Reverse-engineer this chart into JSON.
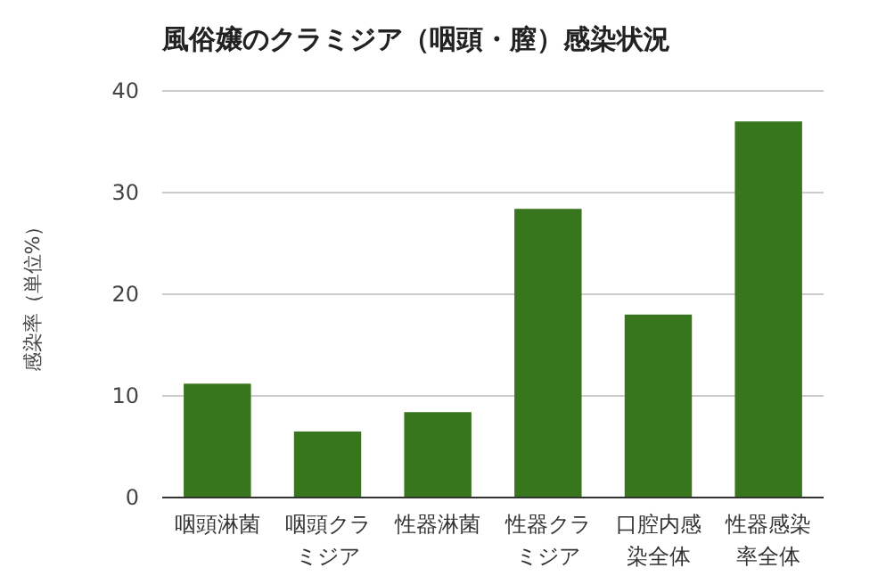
{
  "chart_data": {
    "type": "bar",
    "title": "風俗嬢のクラミジア（咽頭・膣）感染状況",
    "ylabel": "感染率（単位%）",
    "categories": [
      "咽頭淋菌",
      "咽頭クラミジア",
      "性器淋菌",
      "性器クラミジア",
      "口腔内感染全体",
      "性器感染率全体"
    ],
    "values": [
      11.2,
      6.5,
      8.4,
      28.4,
      18,
      37
    ],
    "color": "#38761d",
    "ylim": [
      0,
      40
    ],
    "yticks": [
      0,
      10,
      20,
      30,
      40
    ],
    "grid": "y"
  }
}
